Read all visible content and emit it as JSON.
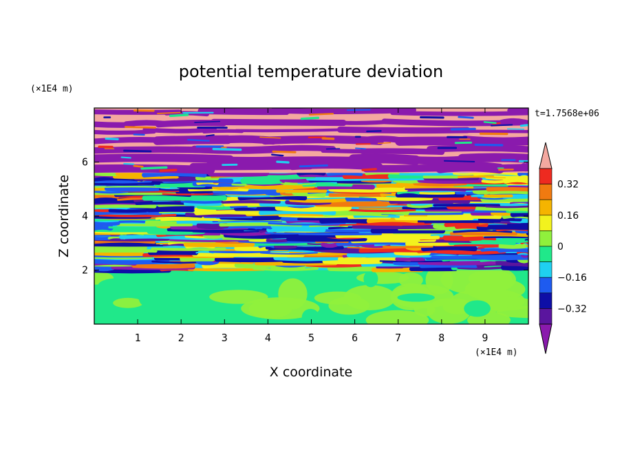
{
  "chart_data": {
    "type": "heatmap",
    "title": "potential temperature deviation",
    "xlabel": "X coordinate",
    "ylabel": "Z coordinate",
    "x_unit": "(×1E4 m)",
    "y_unit": "(×1E4 m)",
    "time_label": "t=1.7568e+06",
    "xlim": [
      0,
      10
    ],
    "ylim": [
      0,
      8
    ],
    "x_ticks": [
      "1",
      "2",
      "3",
      "4",
      "5",
      "6",
      "7",
      "8",
      "9"
    ],
    "y_ticks": [
      "2",
      "4",
      "6"
    ],
    "colorbar": {
      "labels": [
        "0.32",
        "0.16",
        "0",
        "−0.16",
        "−0.32"
      ],
      "levels": [
        -0.48,
        -0.4,
        -0.32,
        -0.24,
        -0.16,
        -0.08,
        0,
        0.08,
        0.16,
        0.24,
        0.32,
        0.4,
        0.48
      ],
      "colors": [
        "#8a1aad",
        "#5a159e",
        "#0e0ea6",
        "#1e5bf0",
        "#1fd0f0",
        "#20e88a",
        "#90f03c",
        "#f2f21e",
        "#f5b400",
        "#f07a10",
        "#ee2a20",
        "#f4a8a0"
      ]
    },
    "layers": [
      {
        "z": [
          0,
          1.0
        ],
        "desc": "green-lightgreen lower layer"
      },
      {
        "z": [
          1.0,
          2.0
        ],
        "desc": "mixed green layer"
      },
      {
        "z": [
          2.0,
          5.5
        ],
        "desc": "turbulent multicolor bands"
      },
      {
        "z": [
          5.5,
          8.0
        ],
        "desc": "alternating purple and pink bands"
      }
    ]
  }
}
